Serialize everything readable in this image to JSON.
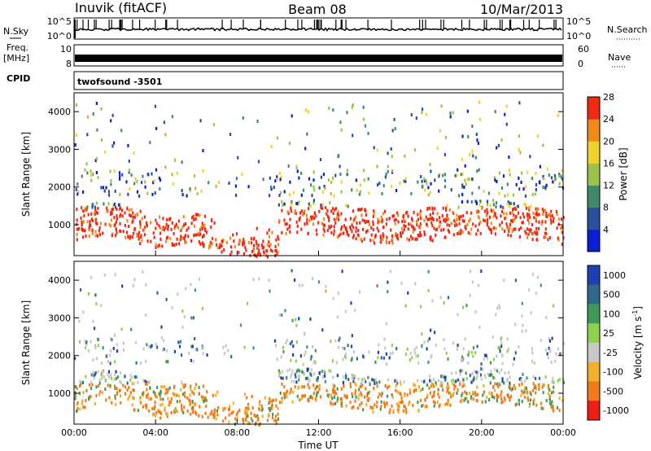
{
  "header": {
    "station": "Inuvik (fitACF)",
    "beam": "Beam 08",
    "date": "10/Mar/2013"
  },
  "strip_labels": {
    "nsky": "N.Sky",
    "nsky_top": "10^5",
    "nsky_bot": "10^0",
    "nsearch": "N.Search",
    "nsearch_top": "10^5",
    "nsearch_bot": "10^0",
    "freq": "Freq.",
    "freq_unit": "[MHz]",
    "freq_top": "10",
    "freq_bot": "8",
    "nave": "Nave",
    "nave_top": "60",
    "nave_bot": "0",
    "cpid": "CPID",
    "cpid_value": "twofsound -3501"
  },
  "chart_data": [
    {
      "type": "heatmap",
      "panel": "power",
      "ylabel": "Slant Range [km]",
      "xlabel": "",
      "x_ticks": [
        "00:00",
        "04:00",
        "08:00",
        "12:00",
        "16:00",
        "20:00",
        "00:00"
      ],
      "y_ticks": [
        1000,
        2000,
        3000,
        4000
      ],
      "xlim_hours": [
        0,
        24
      ],
      "ylim": [
        180,
        4500
      ],
      "colorbar": {
        "label": "Power [dB]",
        "ticks": [
          "4",
          "8",
          "12",
          "16",
          "20",
          "24",
          "28"
        ],
        "colors": [
          "#0a1ed6",
          "#2a4f9c",
          "#3f8a6a",
          "#9cc24a",
          "#f2d22a",
          "#f08a1a",
          "#ee2a14"
        ]
      }
    },
    {
      "type": "heatmap",
      "panel": "velocity",
      "ylabel": "Slant Range [km]",
      "xlabel": "Time UT",
      "x_ticks": [
        "00:00",
        "04:00",
        "08:00",
        "12:00",
        "16:00",
        "20:00",
        "00:00"
      ],
      "y_ticks": [
        1000,
        2000,
        3000,
        4000
      ],
      "xlim_hours": [
        0,
        24
      ],
      "ylim": [
        180,
        4500
      ],
      "colorbar": {
        "label": "Velocity [m s",
        "label_sup": "-1",
        "label_end": "]",
        "ticks": [
          "1000",
          "500",
          "100",
          "25",
          "-25",
          "-100",
          "-500",
          "-1000"
        ],
        "colors": [
          "#1f3fb4",
          "#2f6a8a",
          "#3f9a5a",
          "#8fd050",
          "#c8c8c8",
          "#f2b02a",
          "#f07a18",
          "#ee1e14"
        ]
      }
    }
  ]
}
